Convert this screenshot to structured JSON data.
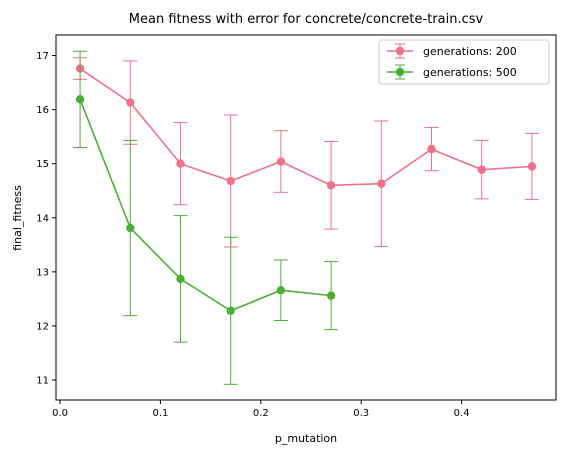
{
  "chart_data": {
    "type": "line",
    "title": "Mean fitness with error for concrete/concrete-train.csv",
    "xlabel": "p_mutation",
    "ylabel": "final_fitness",
    "xlim": [
      -0.004,
      0.494
    ],
    "ylim": [
      10.63,
      17.38
    ],
    "xticks": [
      0.0,
      0.1,
      0.2,
      0.3,
      0.4
    ],
    "xtick_labels": [
      "0.0",
      "0.1",
      "0.2",
      "0.3",
      "0.4"
    ],
    "yticks": [
      11,
      12,
      13,
      14,
      15,
      16,
      17
    ],
    "ytick_labels": [
      "11",
      "12",
      "13",
      "14",
      "15",
      "16",
      "17"
    ],
    "grid": false,
    "legend_position": "top-right",
    "series": [
      {
        "name": "generations: 200",
        "color": "#f0718a",
        "x": [
          0.02,
          0.07,
          0.12,
          0.17,
          0.22,
          0.27,
          0.32,
          0.37,
          0.42,
          0.47
        ],
        "y": [
          16.76,
          16.13,
          15.0,
          14.68,
          15.04,
          14.6,
          14.63,
          15.27,
          14.89,
          14.95
        ],
        "err": [
          0.2,
          0.77,
          0.76,
          1.22,
          0.57,
          0.81,
          1.16,
          0.4,
          0.54,
          0.61
        ]
      },
      {
        "name": "generations: 500",
        "color": "#4caf35",
        "x": [
          0.02,
          0.07,
          0.12,
          0.17,
          0.22,
          0.27
        ],
        "y": [
          16.19,
          13.81,
          12.87,
          12.28,
          12.66,
          12.56
        ],
        "err": [
          0.89,
          1.62,
          1.17,
          1.36,
          0.56,
          0.63
        ]
      }
    ]
  }
}
